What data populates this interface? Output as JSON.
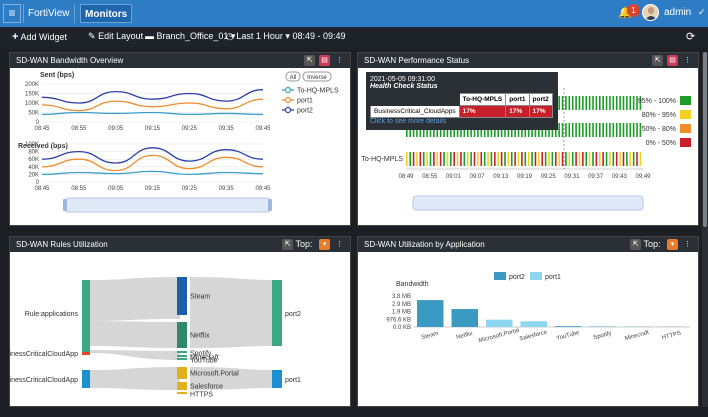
{
  "nav": {
    "menu_icon": "hamburger-icon",
    "fortiview": "FortiView",
    "monitors": "Monitors",
    "alerts_count": "1",
    "user": "admin"
  },
  "toolbar": {
    "add_widget": "Add Widget",
    "edit_layout": "Edit Layout",
    "device": "Branch_Office_01",
    "time_range": "Last 1 Hour",
    "time_span": "08:49 - 09:49"
  },
  "bandwidth": {
    "title": "SD-WAN Bandwidth Overview",
    "sent_label": "Sent (bps)",
    "received_label": "Received (bps)",
    "all_label": "All",
    "inverse_label": "Inverse",
    "legend": [
      "To-HQ-MPLS",
      "port1",
      "port2"
    ],
    "colors": {
      "To-HQ-MPLS": "#3aa0c8",
      "port1": "#f08c2a",
      "port2": "#2a3fa8"
    },
    "sent_ticks": [
      "200K",
      "150K",
      "100K",
      "50K",
      "0"
    ],
    "received_ticks": [
      "100K",
      "80K",
      "60K",
      "40K",
      "20K",
      "0"
    ],
    "time_ticks": [
      "08:45",
      "08:55",
      "09:05",
      "09:15",
      "09:25",
      "09:35",
      "09:45"
    ],
    "chart_data": {
      "type": "line",
      "x": [
        "08:45",
        "08:55",
        "09:05",
        "09:15",
        "09:25",
        "09:35",
        "09:45"
      ],
      "sent": {
        "ylim": [
          0,
          200000
        ],
        "series": [
          {
            "name": "To-HQ-MPLS",
            "values": [
              40000,
              50000,
              45000,
              50000,
              40000,
              45000,
              40000
            ]
          },
          {
            "name": "port1",
            "values": [
              90000,
              60000,
              110000,
              80000,
              100000,
              70000,
              120000
            ]
          },
          {
            "name": "port2",
            "values": [
              130000,
              100000,
              160000,
              120000,
              150000,
              110000,
              170000
            ]
          }
        ]
      },
      "received": {
        "ylim": [
          0,
          100000
        ],
        "series": [
          {
            "name": "To-HQ-MPLS",
            "values": [
              20000,
              25000,
              22000,
              28000,
              20000,
              25000,
              22000
            ]
          },
          {
            "name": "port1",
            "values": [
              40000,
              60000,
              30000,
              70000,
              35000,
              65000,
              40000
            ]
          },
          {
            "name": "port2",
            "values": [
              60000,
              80000,
              50000,
              90000,
              55000,
              85000,
              60000
            ]
          }
        ]
      }
    }
  },
  "performance": {
    "title": "SD-WAN Performance Status",
    "tooltip_time": "2021-05-05 09:31:00",
    "tooltip_heading": "Health Check Status",
    "tooltip_cols": [
      "To-HQ-MPLS",
      "port1",
      "port2"
    ],
    "tooltip_row": "BusinessCritical_CloudApps",
    "tooltip_values": [
      "17%",
      "17%",
      "17%"
    ],
    "tooltip_link": "Click to see more details",
    "row_label": "To-HQ-MPLS",
    "time_ticks": [
      "08:49",
      "08:55",
      "09:01",
      "09:07",
      "09:13",
      "09:19",
      "09:25",
      "09:31",
      "09:37",
      "09:43",
      "09:49"
    ],
    "legend": [
      {
        "label": "95% - 100%",
        "color": "#1e9c2a"
      },
      {
        "label": "80% - 95%",
        "color": "#f2d21c"
      },
      {
        "label": "50% - 80%",
        "color": "#f08c2a"
      },
      {
        "label": "0% - 50%",
        "color": "#c8202a"
      }
    ]
  },
  "rules": {
    "title": "SD-WAN Rules Utilization",
    "top_label": "Top:",
    "left_nodes": [
      "Rule:applications",
      "inessCriticalCloudApp",
      "inessCriticalCloudApp"
    ],
    "middle_nodes": [
      "Steam",
      "Netflix",
      "Spotify",
      "Minecraft",
      "YouTube",
      "Microsoft.Portal",
      "Salesforce",
      "HTTPS"
    ],
    "right_nodes": [
      "port2",
      "port1"
    ]
  },
  "application": {
    "title": "SD-WAN Utilization by Application",
    "top_label": "Top:",
    "ylabel": "Bandwidth",
    "legend": [
      "port2",
      "port1"
    ],
    "colors": {
      "port2": "#3a9ac2",
      "port1": "#8dd6ef"
    },
    "yticks": [
      "3.8 MB",
      "2.9 MB",
      "1.9 MB",
      "976.6 KB",
      "0.0 KB"
    ],
    "chart_data": {
      "type": "bar",
      "categories": [
        "Steam",
        "Netflix",
        "Microsoft.Portal",
        "Salesforce",
        "YouTube",
        "Spotify",
        "Minecraft",
        "HTTPS"
      ],
      "series": [
        {
          "name": "port2",
          "values": [
            3.3,
            2.2,
            0,
            0,
            0.1,
            0.05,
            0.03,
            0.02
          ]
        },
        {
          "name": "port1",
          "values": [
            0,
            0,
            0.9,
            0.7,
            0,
            0,
            0,
            0
          ]
        }
      ],
      "ylim": [
        0,
        3.8
      ]
    }
  }
}
